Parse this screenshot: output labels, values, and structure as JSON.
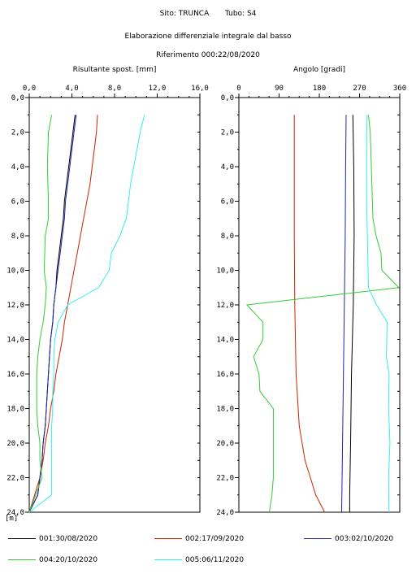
{
  "header": {
    "site_label": "Sito: TRUNCA",
    "tube_label": "Tubo: S4",
    "elaboration": "Elaborazione differenziale integrale dal basso",
    "reference": "Riferimento 000:22/08/2020"
  },
  "chart_data": [
    {
      "type": "line",
      "title": "Risultante spost. [mm]",
      "x_ticks": [
        "0,0",
        "4,0",
        "8,0",
        "12,0",
        "16,0"
      ],
      "xlim": [
        0,
        16
      ],
      "y_ticks": [
        "0,0",
        "2,0",
        "4,0",
        "6,0",
        "8,0",
        "10,0",
        "12,0",
        "14,0",
        "16,0",
        "18,0",
        "20,0",
        "22,0",
        "24,0"
      ],
      "ylim": [
        0,
        24
      ],
      "y_inverted": true,
      "y_unit": "[m]",
      "grid": false,
      "series": [
        {
          "name": "001:30/08/2020",
          "color": "#000000",
          "depth": [
            1,
            2,
            3,
            4,
            5,
            6,
            7,
            8,
            9,
            10,
            11,
            12,
            13,
            14,
            15,
            16,
            17,
            18,
            19,
            20,
            21,
            22,
            23,
            24
          ],
          "values": [
            4.3,
            4.1,
            3.9,
            3.7,
            3.5,
            3.3,
            3.2,
            3.0,
            2.8,
            2.6,
            2.5,
            2.3,
            2.2,
            2.0,
            1.9,
            1.8,
            1.7,
            1.6,
            1.5,
            1.3,
            1.2,
            1.0,
            0.8,
            0.0
          ]
        },
        {
          "name": "002:17/09/2020",
          "color": "#cc2200",
          "depth": [
            1,
            2,
            3,
            4,
            5,
            6,
            7,
            8,
            9,
            10,
            11,
            12,
            13,
            14,
            15,
            16,
            17,
            18,
            19,
            20,
            21,
            22,
            23,
            24
          ],
          "values": [
            6.4,
            6.3,
            6.1,
            5.9,
            5.7,
            5.4,
            5.1,
            4.8,
            4.5,
            4.2,
            3.9,
            3.6,
            3.3,
            3.1,
            2.8,
            2.5,
            2.3,
            2.0,
            1.8,
            1.5,
            1.3,
            1.0,
            0.5,
            0.0
          ]
        },
        {
          "name": "003:02/10/2020",
          "color": "#2222aa",
          "depth": [
            1,
            2,
            3,
            4,
            5,
            6,
            7,
            8,
            9,
            10,
            11,
            12,
            13,
            14,
            15,
            16,
            17,
            18,
            19,
            20,
            21,
            22,
            23,
            24
          ],
          "values": [
            4.4,
            4.2,
            4.0,
            3.8,
            3.6,
            3.4,
            3.3,
            3.1,
            2.9,
            2.7,
            2.5,
            2.3,
            2.2,
            2.0,
            1.9,
            1.8,
            1.7,
            1.6,
            1.5,
            1.3,
            1.2,
            1.0,
            0.8,
            0.0
          ]
        },
        {
          "name": "004:20/10/2020",
          "color": "#33cc33",
          "depth": [
            1,
            2,
            4,
            6,
            7,
            8,
            10,
            11,
            12,
            13,
            14,
            15,
            16,
            18,
            19,
            20,
            21,
            22,
            23,
            24
          ],
          "values": [
            2.1,
            1.8,
            1.7,
            1.8,
            1.8,
            1.5,
            1.4,
            1.6,
            1.5,
            1.3,
            1.0,
            0.8,
            0.7,
            0.7,
            0.8,
            1.0,
            1.0,
            1.2,
            0.6,
            0.0
          ]
        },
        {
          "name": "005:06/11/2020",
          "color": "#33eeee",
          "depth": [
            1,
            2,
            3,
            4,
            5,
            6,
            7,
            8,
            9,
            10,
            11,
            12,
            13,
            14,
            15,
            16,
            17,
            18,
            19,
            20,
            21,
            22,
            23,
            24
          ],
          "values": [
            10.8,
            10.4,
            10.1,
            9.8,
            9.5,
            9.3,
            9.1,
            8.5,
            7.7,
            7.5,
            6.5,
            3.6,
            2.7,
            2.4,
            2.3,
            2.3,
            2.2,
            2.2,
            2.1,
            2.1,
            2.1,
            2.1,
            2.1,
            0.0
          ]
        }
      ]
    },
    {
      "type": "line",
      "title": "Angolo [gradi]",
      "x_ticks": [
        "0",
        "90",
        "180",
        "270",
        "360"
      ],
      "xlim": [
        0,
        360
      ],
      "y_ticks": [
        "0,0",
        "2,0",
        "4,0",
        "6,0",
        "8,0",
        "10,0",
        "12,0",
        "14,0",
        "16,0",
        "18,0",
        "20,0",
        "22,0",
        "24,0"
      ],
      "ylim": [
        0,
        24
      ],
      "y_inverted": true,
      "y_unit": "",
      "grid": false,
      "series": [
        {
          "name": "001:30/08/2020",
          "color": "#000000",
          "depth": [
            1,
            4,
            8,
            12,
            16,
            20,
            23,
            24
          ],
          "values": [
            255,
            257,
            258,
            256,
            252,
            250,
            248,
            248
          ]
        },
        {
          "name": "002:17/09/2020",
          "color": "#cc2200",
          "depth": [
            1,
            4,
            8,
            12,
            16,
            19,
            21,
            22,
            23,
            24
          ],
          "values": [
            124,
            124,
            124,
            125,
            128,
            135,
            148,
            160,
            172,
            192
          ]
        },
        {
          "name": "003:02/10/2020",
          "color": "#2222aa",
          "depth": [
            1,
            4,
            8,
            12,
            16,
            20,
            24
          ],
          "values": [
            240,
            239,
            238,
            236,
            234,
            232,
            230
          ]
        },
        {
          "name": "004:20/10/2020",
          "color": "#33cc33",
          "depth": [
            1,
            2,
            7,
            8,
            9,
            10,
            11,
            12,
            13,
            14,
            15,
            16,
            17,
            18,
            19,
            20,
            21,
            22,
            23,
            24
          ],
          "values": [
            290,
            294,
            300,
            307,
            318,
            320,
            358,
            18,
            54,
            54,
            33,
            45,
            47,
            77,
            77,
            77,
            77,
            77,
            74,
            68
          ]
        },
        {
          "name": "005:06/11/2020",
          "color": "#33eeee",
          "depth": [
            1,
            2,
            6,
            11,
            12,
            13,
            15,
            16,
            18,
            20,
            22,
            24
          ],
          "values": [
            287,
            286,
            286,
            290,
            308,
            332,
            330,
            336,
            335,
            338,
            335,
            336
          ]
        }
      ]
    }
  ],
  "legend": [
    {
      "label": "001:30/08/2020",
      "color": "#000000"
    },
    {
      "label": "002:17/09/2020",
      "color": "#cc2200"
    },
    {
      "label": "003:02/10/2020",
      "color": "#2222aa"
    },
    {
      "label": "004:20/10/2020",
      "color": "#33cc33"
    },
    {
      "label": "005:06/11/2020",
      "color": "#33eeee"
    }
  ]
}
